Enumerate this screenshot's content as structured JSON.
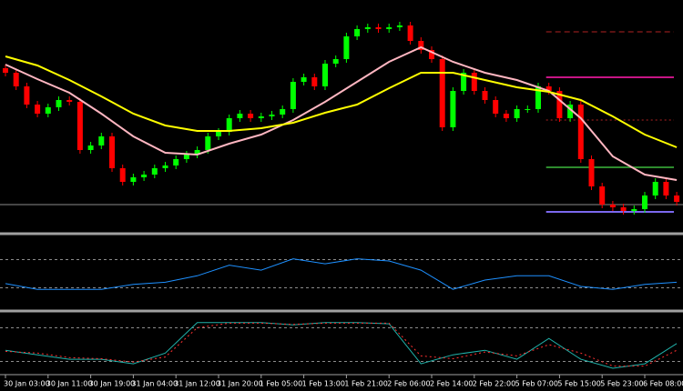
{
  "chart_data": [
    {
      "type": "candlestick",
      "categories": [
        "30 Jan 03:00",
        null,
        null,
        null,
        "30 Jan 11:00",
        null,
        null,
        null,
        "30 Jan 19:00",
        null,
        null,
        null,
        "31 Jan 04:00",
        null,
        null,
        null,
        "31 Jan 12:00",
        null,
        null,
        null,
        "31 Jan 20:00",
        null,
        null,
        null,
        "1 Feb 05:00",
        null,
        null,
        null,
        "1 Feb 13:00",
        null,
        null,
        null,
        "1 Feb 21:00",
        null,
        null,
        null,
        "2 Feb 06:00",
        null,
        null,
        null,
        "2 Feb 14:00",
        null,
        null,
        null,
        "2 Feb 22:00",
        null,
        null,
        null,
        "5 Feb 07:00",
        null,
        null,
        null,
        "5 Feb 15:00",
        null,
        null,
        null,
        "5 Feb 23:00",
        null,
        null,
        null,
        "6 Feb 08:00",
        null,
        null,
        null
      ],
      "open": [
        170,
        165,
        150,
        130,
        120,
        127,
        135,
        133,
        80,
        85,
        95,
        60,
        45,
        50,
        53,
        60,
        63,
        70,
        75,
        80,
        95,
        100,
        115,
        120,
        115,
        117,
        119,
        125,
        155,
        160,
        150,
        175,
        180,
        205,
        213,
        215,
        213,
        215,
        217,
        200,
        190,
        180,
        105,
        145,
        165,
        145,
        135,
        120,
        115,
        125,
        125,
        150,
        145,
        115,
        130,
        70,
        40,
        20,
        17,
        13,
        15,
        30,
        45,
        30
      ],
      "high": [
        174,
        169,
        154,
        134,
        131,
        139,
        139,
        137,
        89,
        99,
        99,
        64,
        54,
        57,
        64,
        67,
        74,
        79,
        84,
        99,
        104,
        119,
        124,
        124,
        121,
        123,
        129,
        159,
        164,
        164,
        179,
        184,
        209,
        217,
        219,
        219,
        219,
        221,
        221,
        204,
        194,
        184,
        149,
        169,
        169,
        149,
        139,
        124,
        129,
        129,
        154,
        154,
        149,
        134,
        134,
        74,
        44,
        24,
        21,
        19,
        34,
        49,
        49,
        34
      ],
      "low": [
        161,
        146,
        126,
        116,
        116,
        123,
        129,
        76,
        76,
        81,
        56,
        41,
        41,
        46,
        49,
        56,
        59,
        66,
        71,
        76,
        91,
        96,
        111,
        111,
        111,
        113,
        115,
        121,
        151,
        146,
        146,
        171,
        176,
        201,
        209,
        209,
        209,
        211,
        196,
        186,
        176,
        101,
        101,
        141,
        141,
        131,
        116,
        111,
        111,
        121,
        121,
        141,
        111,
        111,
        66,
        36,
        16,
        13,
        9,
        9,
        11,
        26,
        26,
        19
      ],
      "close": [
        165,
        150,
        130,
        120,
        127,
        135,
        133,
        80,
        85,
        95,
        60,
        45,
        50,
        53,
        60,
        63,
        70,
        75,
        80,
        95,
        100,
        115,
        120,
        115,
        117,
        119,
        125,
        155,
        160,
        150,
        175,
        180,
        205,
        213,
        215,
        213,
        215,
        217,
        200,
        190,
        180,
        105,
        145,
        165,
        145,
        135,
        120,
        115,
        125,
        125,
        150,
        145,
        115,
        130,
        70,
        40,
        20,
        17,
        13,
        15,
        30,
        45,
        30,
        23
      ],
      "up_color": "#00ff00",
      "down_color": "#ff0000",
      "ylim": [
        0,
        240
      ],
      "series": [
        {
          "color": "#ffb6c1",
          "x": [
            0,
            3,
            6,
            9,
            12,
            15,
            18,
            21,
            24,
            27,
            30,
            33,
            36,
            39,
            42,
            45,
            48,
            51,
            54,
            57,
            60,
            63
          ],
          "values": [
            174,
            158,
            143,
            120,
            95,
            77,
            75,
            87,
            97,
            113,
            133,
            155,
            177,
            193,
            177,
            165,
            157,
            145,
            115,
            73,
            53,
            47
          ]
        },
        {
          "color": "#ffff00",
          "x": [
            0,
            3,
            6,
            9,
            12,
            15,
            18,
            21,
            24,
            27,
            30,
            33,
            36,
            39,
            42,
            45,
            48,
            51,
            54,
            57,
            60,
            63
          ],
          "values": [
            183,
            173,
            157,
            139,
            120,
            107,
            101,
            101,
            104,
            110,
            121,
            130,
            148,
            165,
            165,
            157,
            149,
            144,
            135,
            117,
            97,
            83
          ]
        }
      ],
      "levels": [
        {
          "value": 20,
          "color": "#8a8a8a",
          "style": "solid",
          "start": 0
        },
        {
          "value": 12,
          "color": "#7b68ee",
          "style": "solid",
          "start": 51
        },
        {
          "value": 61,
          "color": "#2e8b2e",
          "style": "solid",
          "start": 51
        },
        {
          "value": 160,
          "color": "#c71585",
          "style": "solid",
          "start": 51
        },
        {
          "value": 210,
          "color": "#b22222",
          "style": "dashed",
          "start": 51
        },
        {
          "value": 113,
          "color": "#b22222",
          "style": "dotted",
          "start": 51
        }
      ]
    },
    {
      "type": "line",
      "ylim": [
        0,
        100
      ],
      "levels": [
        70,
        30
      ],
      "series": [
        {
          "color": "#1e90ff",
          "x": [
            0,
            3,
            6,
            9,
            12,
            15,
            18,
            21,
            24,
            27,
            30,
            33,
            36,
            39,
            42,
            45,
            48,
            51,
            54,
            57,
            60,
            63
          ],
          "values": [
            36,
            28,
            28,
            28,
            35,
            38,
            47,
            62,
            55,
            71,
            64,
            71,
            68,
            55,
            28,
            41,
            47,
            47,
            32,
            28,
            35,
            38
          ]
        }
      ]
    },
    {
      "type": "line",
      "ylim": [
        0,
        100
      ],
      "levels": [
        80,
        20
      ],
      "series": [
        {
          "color": "#20b2aa",
          "style": "solid",
          "x": [
            0,
            3,
            6,
            9,
            12,
            15,
            18,
            21,
            24,
            27,
            30,
            33,
            36,
            39,
            42,
            45,
            48,
            51,
            54,
            57,
            60,
            63
          ],
          "values": [
            40,
            32,
            24,
            24,
            16,
            35,
            89,
            89,
            89,
            85,
            89,
            89,
            87,
            16,
            32,
            40,
            24,
            61,
            24,
            8,
            16,
            52
          ]
        },
        {
          "color": "#ff3030",
          "style": "dotted",
          "x": [
            0,
            3,
            6,
            9,
            12,
            15,
            18,
            21,
            24,
            27,
            30,
            33,
            36,
            39,
            42,
            45,
            48,
            51,
            54,
            57,
            60,
            63
          ],
          "values": [
            38,
            35,
            27,
            25,
            19,
            28,
            80,
            88,
            88,
            86,
            88,
            88,
            88,
            30,
            25,
            37,
            30,
            50,
            35,
            12,
            12,
            40
          ]
        }
      ]
    }
  ]
}
